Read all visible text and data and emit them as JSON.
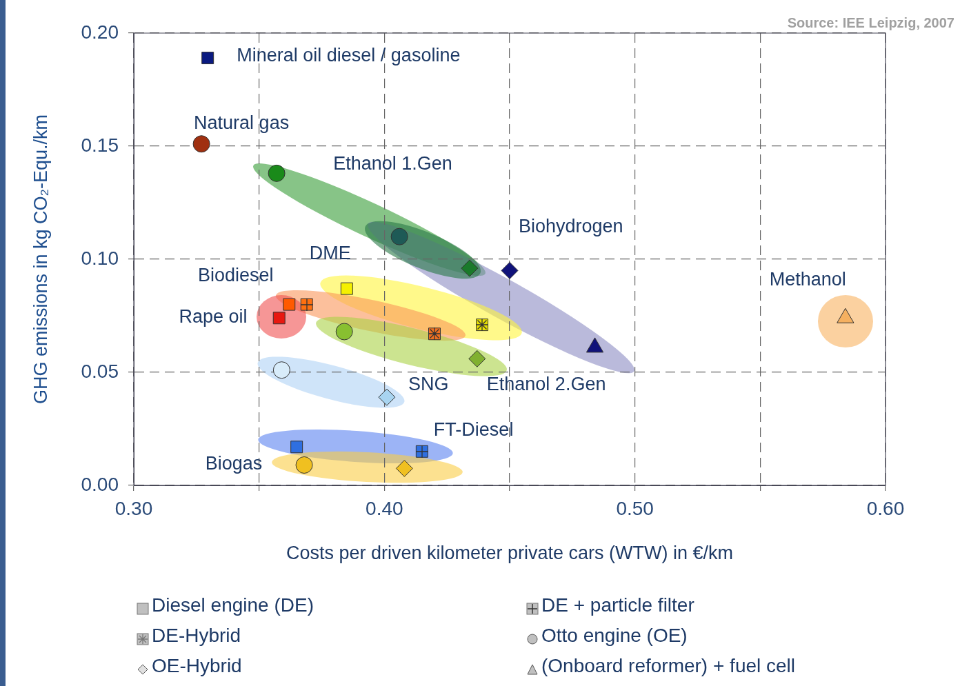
{
  "chart_data": {
    "type": "scatter",
    "xlabel": "Costs per driven kilometer private cars (WTW) in €/km",
    "ylabel": "GHG emissions in kg CO₂-Equ./km",
    "xlim": [
      0.3,
      0.6
    ],
    "ylim": [
      0,
      0.2
    ],
    "xticks": [
      {
        "value": 0.3,
        "label": "0.30"
      },
      {
        "value": 0.35,
        "label": null
      },
      {
        "value": 0.4,
        "label": "0.40"
      },
      {
        "value": 0.45,
        "label": null
      },
      {
        "value": 0.5,
        "label": "0.50"
      },
      {
        "value": 0.55,
        "label": null
      },
      {
        "value": 0.6,
        "label": "0.60"
      }
    ],
    "yticks": [
      {
        "value": 0,
        "label": "0.00"
      },
      {
        "value": 0.05,
        "label": "0.05"
      },
      {
        "value": 0.1,
        "label": "0.10"
      },
      {
        "value": 0.15,
        "label": "0.15"
      },
      {
        "value": 0.2,
        "label": "0.20"
      }
    ],
    "grid": true,
    "series": [
      {
        "name": "Mineral oil diesel / gasoline",
        "marker": "square",
        "color": "#0a1a80",
        "x": [
          0.3295
        ],
        "values": [
          0.189
        ]
      },
      {
        "name": "Natural gas",
        "marker": "circle",
        "color": "#a03010",
        "x": [
          0.327
        ],
        "values": [
          0.151
        ]
      },
      {
        "name": "Ethanol 1.Gen",
        "marker": "circle",
        "color": "#1a8a1a",
        "x": [
          0.357,
          0.406
        ],
        "values": [
          0.138,
          0.11
        ],
        "colors": [
          "#1a8a1a",
          "#1e5a56"
        ]
      },
      {
        "name": "Biohydrogen",
        "marker": "diamond",
        "color": "#10127a",
        "x": [
          0.45
        ],
        "values": [
          0.095
        ]
      },
      {
        "name": "DME",
        "marker": "square",
        "color": "#f5f000",
        "x": [
          0.385
        ],
        "values": [
          0.087
        ]
      },
      {
        "name": "Biodiesel",
        "marker": "square",
        "color": "#ff5a00",
        "x": [
          0.362
        ],
        "values": [
          0.08
        ]
      },
      {
        "name": "Rape oil",
        "marker": "square",
        "color": "#e81810",
        "x": [
          0.358
        ],
        "values": [
          0.074
        ]
      },
      {
        "name": "Ethanol 2.Gen",
        "marker": "diamond",
        "color": "#80b030",
        "x": [
          0.437
        ],
        "values": [
          0.056
        ]
      },
      {
        "name": "SNG",
        "marker": "diamond",
        "color": "#a8d4f0",
        "x": [
          0.401
        ],
        "values": [
          0.039
        ]
      },
      {
        "name": "FT-Diesel",
        "marker": "square",
        "color": "#2f6fe0",
        "x": [
          0.415
        ],
        "values": [
          0.015
        ]
      },
      {
        "name": "Biogas",
        "marker": "circle",
        "color": "#f0c020",
        "x": [
          0.368
        ],
        "values": [
          0.009
        ]
      },
      {
        "name": "Methanol",
        "marker": "triangle",
        "color": "#f5b060",
        "x": [
          0.584
        ],
        "values": [
          0.074
        ]
      },
      {
        "marker": "diamond",
        "color": "#1a7a2a",
        "x": [
          0.434
        ],
        "values": [
          0.096
        ]
      },
      {
        "marker": "triangle",
        "color": "#10127a",
        "x": [
          0.484
        ],
        "values": [
          0.061
        ]
      },
      {
        "marker": "square",
        "color": "#e8e000",
        "x": [
          0.439
        ],
        "values": [
          0.071
        ]
      },
      {
        "marker": "square",
        "color": "#ff7010",
        "x": [
          0.369
        ],
        "values": [
          0.08
        ]
      },
      {
        "marker": "square",
        "color": "#f07020",
        "x": [
          0.42
        ],
        "values": [
          0.067
        ]
      },
      {
        "marker": "circle",
        "color": "#88c030",
        "x": [
          0.384
        ],
        "values": [
          0.068
        ]
      },
      {
        "marker": "circle",
        "color": "#d8ecfa",
        "x": [
          0.359
        ],
        "values": [
          0.051
        ]
      },
      {
        "marker": "square",
        "color": "#2f6fe0",
        "x": [
          0.365
        ],
        "values": [
          0.017
        ]
      },
      {
        "marker": "diamond",
        "color": "#f0c020",
        "x": [
          0.408
        ],
        "values": [
          0.0075
        ]
      }
    ],
    "annotations": [
      "Source: IEE Leipzig, 2007",
      "Diesel engine (DE)",
      "DE + particle filter",
      "DE-Hybrid",
      "Otto engine (OE)",
      "OE-Hybrid",
      "(Onboard reformer) + fuel cell"
    ]
  }
}
